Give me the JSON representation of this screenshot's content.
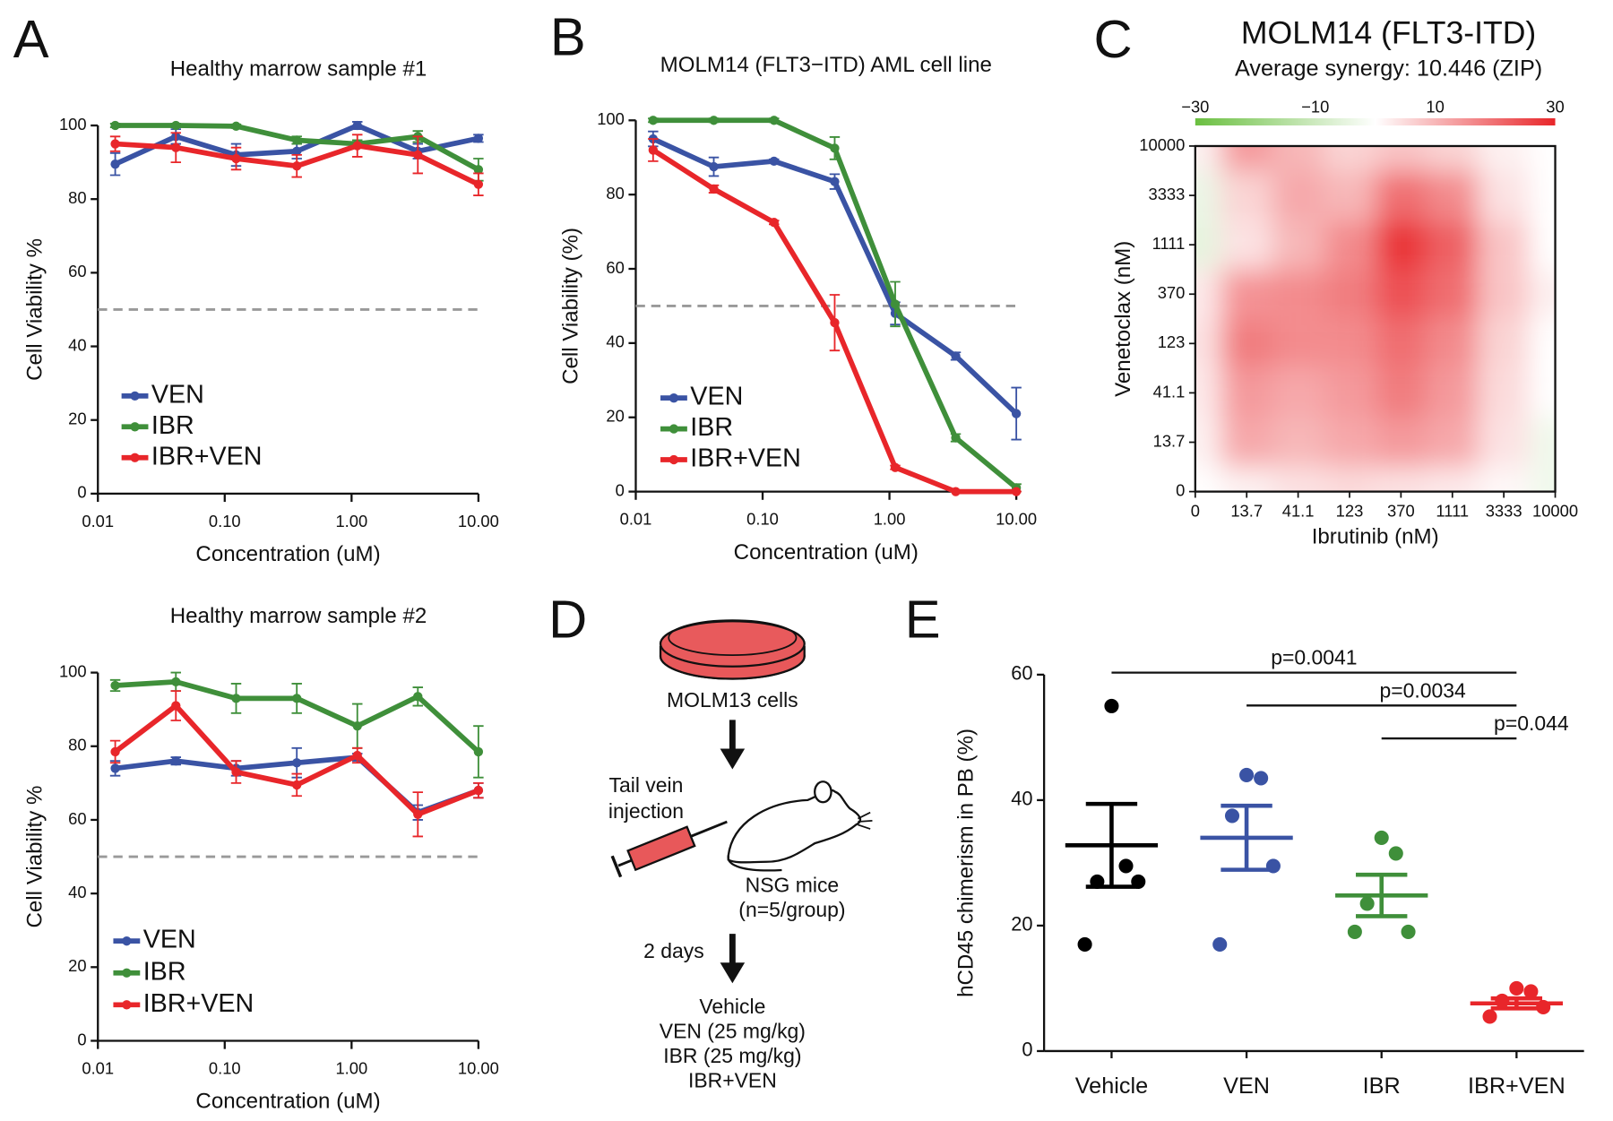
{
  "panel_labels": [
    "A",
    "B",
    "C",
    "D",
    "E"
  ],
  "chart_data": [
    {
      "type": "line",
      "title": "Healthy marrow sample #1",
      "xlabel": "Concentration (uM)",
      "ylabel": "Cell Viability %",
      "log_x": true,
      "x": [
        0.0137,
        0.0412,
        0.123,
        0.37,
        1.11,
        3.33,
        10
      ],
      "xlim": [
        0.01,
        10
      ],
      "xticks": [
        {
          "value": 0.01,
          "label": "0.01"
        },
        {
          "value": 0.1,
          "label": "0.10"
        },
        {
          "value": 1,
          "label": "1.00"
        },
        {
          "value": 10,
          "label": "10.00"
        }
      ],
      "ylim": [
        0,
        100
      ],
      "yticks": [
        0,
        20,
        40,
        60,
        80,
        100
      ],
      "reference_line": 50,
      "legend": "lower left",
      "series": [
        {
          "name": "VEN",
          "color": "#3a53a4",
          "values": [
            89.5,
            97,
            92,
            93,
            100,
            93,
            96.5
          ],
          "errors": [
            3,
            2,
            3,
            2,
            1,
            2,
            1
          ]
        },
        {
          "name": "IBR",
          "color": "#3f8f3a",
          "values": [
            100,
            100,
            99.8,
            96,
            95,
            97,
            88
          ],
          "errors": [
            0.5,
            0.5,
            0.5,
            1,
            1,
            1.5,
            3
          ]
        },
        {
          "name": "IBR+VEN",
          "color": "#e8262a",
          "values": [
            95,
            94,
            91,
            89,
            94.5,
            92,
            84
          ],
          "errors": [
            2,
            4,
            3,
            3,
            3,
            5,
            3
          ]
        }
      ]
    },
    {
      "type": "line",
      "title": "Healthy marrow sample #2",
      "xlabel": "Concentration (uM)",
      "ylabel": "Cell Viability %",
      "log_x": true,
      "x": [
        0.0137,
        0.0412,
        0.123,
        0.37,
        1.11,
        3.33,
        10
      ],
      "xlim": [
        0.01,
        10
      ],
      "xticks": [
        {
          "value": 0.01,
          "label": "0.01"
        },
        {
          "value": 0.1,
          "label": "0.10"
        },
        {
          "value": 1,
          "label": "1.00"
        },
        {
          "value": 10,
          "label": "10.00"
        }
      ],
      "ylim": [
        0,
        100
      ],
      "yticks": [
        0,
        20,
        40,
        60,
        80,
        100
      ],
      "reference_line": 50,
      "legend": "lower left",
      "series": [
        {
          "name": "VEN",
          "color": "#3a53a4",
          "values": [
            74,
            76,
            74,
            75.5,
            77,
            62,
            68
          ],
          "errors": [
            2,
            1,
            2,
            4,
            1,
            2,
            2
          ]
        },
        {
          "name": "IBR",
          "color": "#3f8f3a",
          "values": [
            96.5,
            97.5,
            93,
            93,
            85.5,
            93.5,
            78.5
          ],
          "errors": [
            1.5,
            2.5,
            4,
            4,
            6,
            2.5,
            7
          ]
        },
        {
          "name": "IBR+VEN",
          "color": "#e8262a",
          "values": [
            78.5,
            91,
            73,
            69.5,
            77.5,
            61.5,
            68
          ],
          "errors": [
            3,
            4,
            3,
            3,
            2,
            6,
            2
          ]
        }
      ]
    },
    {
      "type": "line",
      "title": "MOLM14 (FLT3−ITD) AML cell line",
      "xlabel": "Concentration (uM)",
      "ylabel": "Cell Viability (%)",
      "log_x": true,
      "x": [
        0.0137,
        0.0412,
        0.123,
        0.37,
        1.11,
        3.33,
        10
      ],
      "xlim": [
        0.01,
        10
      ],
      "xticks": [
        {
          "value": 0.01,
          "label": "0.01"
        },
        {
          "value": 0.1,
          "label": "0.10"
        },
        {
          "value": 1,
          "label": "1.00"
        },
        {
          "value": 10,
          "label": "10.00"
        }
      ],
      "ylim": [
        0,
        100
      ],
      "yticks": [
        0,
        20,
        40,
        60,
        80,
        100
      ],
      "reference_line": 50,
      "legend": "lower left",
      "series": [
        {
          "name": "VEN",
          "color": "#3a53a4",
          "values": [
            95,
            87.5,
            89,
            83.5,
            48,
            36.5,
            21
          ],
          "errors": [
            2,
            2.5,
            0.5,
            2,
            3,
            1,
            7
          ]
        },
        {
          "name": "IBR",
          "color": "#3f8f3a",
          "values": [
            100,
            100,
            100,
            92.5,
            50.5,
            14.5,
            1
          ],
          "errors": [
            0.5,
            0.5,
            0.5,
            3,
            6,
            1,
            1
          ]
        },
        {
          "name": "IBR+VEN",
          "color": "#e8262a",
          "values": [
            92,
            81.5,
            72.5,
            45.5,
            6.5,
            0,
            0
          ],
          "errors": [
            3,
            1,
            0.5,
            7.5,
            0.5,
            0,
            0
          ]
        }
      ]
    },
    {
      "type": "heatmap",
      "title": "MOLM14 (FLT3-ITD)",
      "subtitle": "Average synergy: 10.446 (ZIP)",
      "xlabel": "Ibrutinib (nM)",
      "ylabel": "Venetoclax (nM)",
      "x": [
        "0",
        "13.7",
        "41.1",
        "123",
        "370",
        "1111",
        "3333",
        "10000"
      ],
      "y": [
        "0",
        "13.7",
        "41.1",
        "123",
        "370",
        "1111",
        "3333",
        "10000"
      ],
      "z": [
        [
          0,
          2,
          4,
          5,
          4,
          3,
          1,
          -3
        ],
        [
          2,
          12,
          10,
          12,
          14,
          12,
          4,
          -3
        ],
        [
          3,
          14,
          12,
          14,
          18,
          14,
          5,
          0
        ],
        [
          4,
          18,
          16,
          16,
          20,
          16,
          6,
          0
        ],
        [
          3,
          15,
          16,
          18,
          24,
          20,
          8,
          2
        ],
        [
          -5,
          4,
          10,
          16,
          28,
          22,
          8,
          0
        ],
        [
          -4,
          6,
          12,
          10,
          20,
          16,
          4,
          0
        ],
        [
          2,
          14,
          10,
          6,
          8,
          6,
          2,
          0
        ]
      ],
      "colorbar": {
        "lim": [
          -30,
          30
        ],
        "ticks": [
          {
            "value": -30,
            "label": "−30"
          },
          {
            "value": -10,
            "label": "−10"
          },
          10,
          30
        ],
        "low_color": "#6abf40",
        "high_color": "#e8262a"
      }
    },
    {
      "type": "dot",
      "ylabel": "hCD45 chimerism in PB (%)",
      "ylim": [
        0,
        60
      ],
      "yticks": [
        0,
        20,
        40,
        60
      ],
      "groups": [
        {
          "name": "Vehicle",
          "color": "#000000",
          "values": [
            55,
            29.5,
            27,
            27,
            17
          ],
          "mean": 32.8,
          "sem": 6.6
        },
        {
          "name": "VEN",
          "color": "#3a53a4",
          "values": [
            44,
            43.5,
            37.5,
            29.5,
            17
          ],
          "mean": 34,
          "sem": 5.1
        },
        {
          "name": "IBR",
          "color": "#3f8f3a",
          "values": [
            34,
            31.5,
            23.5,
            19,
            19
          ],
          "mean": 24.8,
          "sem": 3.3
        },
        {
          "name": "IBR+VEN",
          "color": "#e8262a",
          "values": [
            10,
            9.5,
            8,
            7,
            5.5
          ],
          "mean": 7.6,
          "sem": 0.8
        }
      ],
      "comparisons": [
        {
          "label": "p=0.0041",
          "from": "Vehicle",
          "to": "IBR+VEN"
        },
        {
          "label": "p=0.0034",
          "from": "VEN",
          "to": "IBR+VEN"
        },
        {
          "label": "p=0.044",
          "from": "IBR",
          "to": "IBR+VEN"
        }
      ]
    }
  ],
  "diagram": {
    "cells": "MOLM13 cells",
    "injection": [
      "Tail vein",
      "injection"
    ],
    "mice": [
      "NSG mice",
      "(n=5/group)"
    ],
    "delay": "2 days",
    "treatments": [
      "Vehicle",
      "VEN (25 mg/kg)",
      "IBR (25 mg/kg)",
      "IBR+VEN"
    ]
  }
}
